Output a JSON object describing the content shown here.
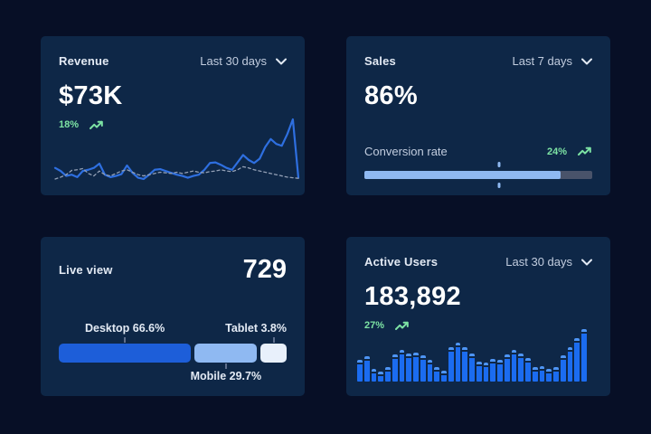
{
  "colors": {
    "page_bg": "#070f26",
    "card_bg": "#0e2747",
    "title_text": "#e3eaf4",
    "muted_text": "#c2cddf",
    "value_text": "#ffffff",
    "green": "#7de3a4",
    "line_solid": "#2e6fe0",
    "line_dashed": "#93a0b6",
    "bar_fill": "#1b6cf0",
    "bar_cap": "#4e95f5",
    "progress_fill": "#8fb9f2",
    "progress_track": "#49536a",
    "tick_color": "#5e6e8c",
    "segment_desktop": "#1d5ed9",
    "segment_mobile": "#8fb9f2",
    "segment_tablet": "#e8f0fb"
  },
  "cards": {
    "revenue": {
      "title": "Revenue",
      "period": "Last 30 days",
      "value": "$73K",
      "delta": "18%",
      "chart_data": {
        "type": "line",
        "ylim": [
          0,
          100
        ],
        "grid": false,
        "series": [
          {
            "name": "current",
            "style": "solid",
            "values": [
              21,
              16,
              8,
              10,
              6,
              16,
              18,
              21,
              28,
              10,
              6,
              8,
              11,
              25,
              13,
              5,
              3,
              10,
              18,
              19,
              16,
              13,
              10,
              8,
              5,
              8,
              10,
              18,
              29,
              30,
              26,
              21,
              18,
              30,
              42,
              34,
              29,
              36,
              55,
              68,
              60,
              57,
              76,
              100,
              5
            ]
          },
          {
            "name": "previous",
            "style": "dashed",
            "values": [
              3,
              6,
              10,
              17,
              18,
              20,
              12,
              8,
              16,
              10,
              8,
              12,
              16,
              18,
              14,
              10,
              8,
              10,
              12,
              14,
              13,
              12,
              14,
              12,
              14,
              16,
              14,
              13,
              15,
              16,
              18,
              16,
              15,
              18,
              23,
              21,
              18,
              16,
              14,
              12,
              10,
              8,
              6,
              5,
              4
            ]
          }
        ]
      }
    },
    "sales": {
      "title": "Sales",
      "period": "Last 7 days",
      "value": "86%",
      "metric_label": "Conversion rate",
      "delta": "24%",
      "chart_data": {
        "type": "progress",
        "fill_pct": 86,
        "marker_pct": 59
      }
    },
    "live_view": {
      "title": "Live view",
      "value": "729",
      "chart_data": {
        "type": "stacked-bar",
        "segments": [
          {
            "label": "Desktop 66.6%",
            "name": "Desktop",
            "value": 66.6,
            "width_pct": 58.0,
            "color_key": "segment_desktop",
            "label_position": "top",
            "label_align": "center"
          },
          {
            "label": "Mobile 29.7%",
            "name": "Mobile",
            "value": 29.7,
            "width_pct": 27.5,
            "color_key": "segment_mobile",
            "label_position": "bottom",
            "label_align": "center"
          },
          {
            "label": "Tablet 3.8%",
            "name": "Tablet",
            "value": 3.8,
            "width_pct": 11.2,
            "color_key": "segment_tablet",
            "label_position": "top",
            "label_align": "right"
          }
        ]
      }
    },
    "active_users": {
      "title": "Active Users",
      "period": "Last 30 days",
      "value": "183,892",
      "delta": "27%",
      "chart_data": {
        "type": "bar",
        "ylim": [
          0,
          100
        ],
        "values": [
          38,
          45,
          22,
          18,
          26,
          48,
          56,
          50,
          52,
          46,
          38,
          26,
          20,
          62,
          70,
          62,
          50,
          36,
          34,
          40,
          38,
          48,
          56,
          50,
          42,
          26,
          28,
          22,
          26,
          46,
          62,
          78,
          94
        ]
      }
    }
  }
}
